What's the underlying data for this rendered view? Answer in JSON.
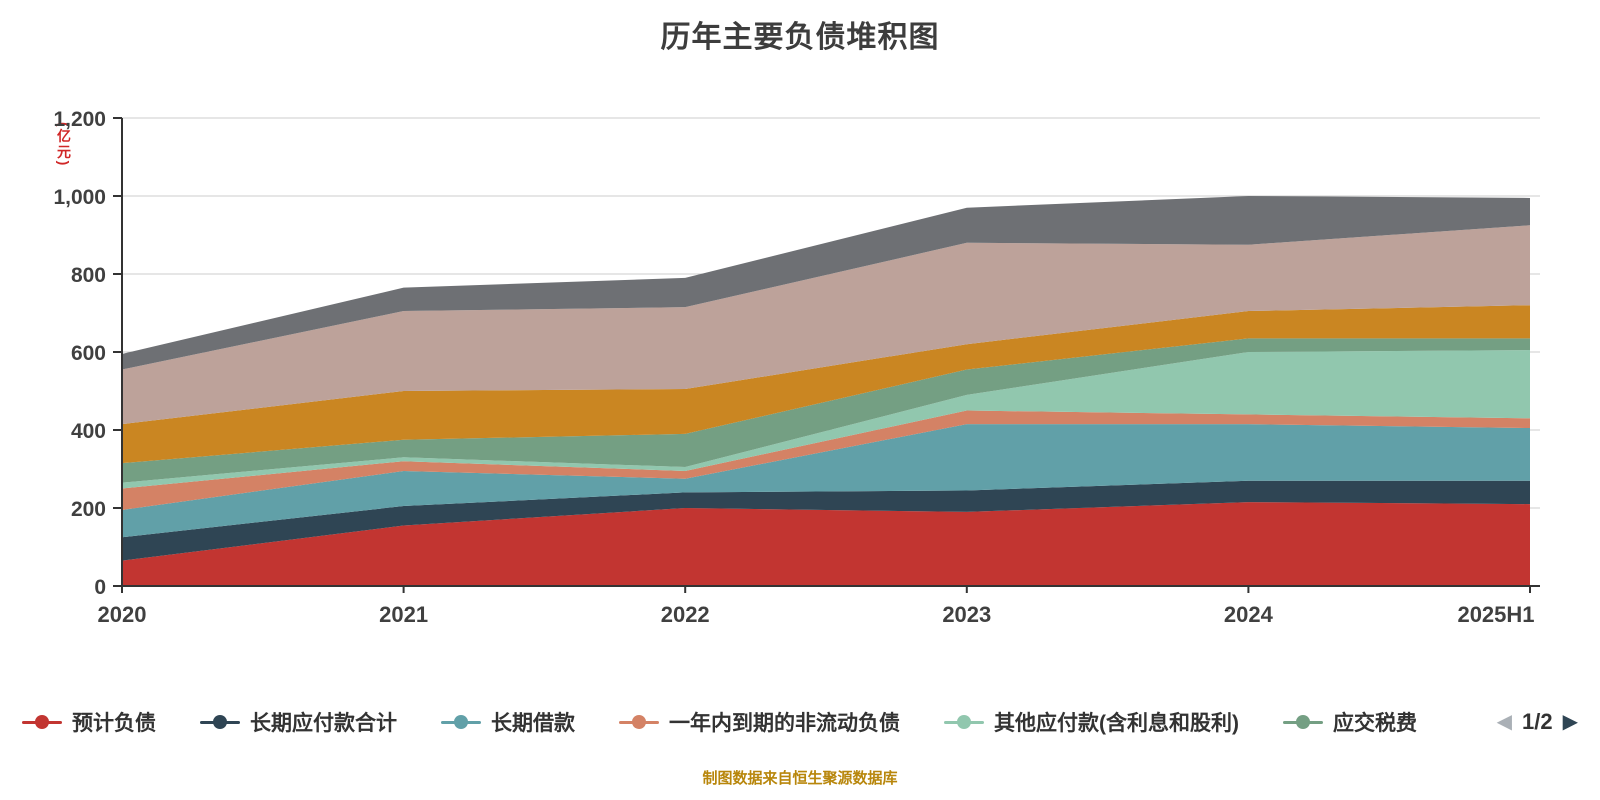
{
  "title": "历年主要负债堆积图",
  "caption": "制图数据来自恒生聚源数据库",
  "y_axis": {
    "name": "(亿元)",
    "tick_labels": [
      "0",
      "200",
      "400",
      "600",
      "800",
      "1,000",
      "1,200"
    ],
    "min": 0,
    "max": 1200
  },
  "x_axis": {
    "categories": [
      "2020",
      "2021",
      "2022",
      "2023",
      "2024",
      "2025H1"
    ]
  },
  "legend": {
    "visible_items": [
      {
        "label": "预计负债",
        "color": "#c23531"
      },
      {
        "label": "长期应付款合计",
        "color": "#2f4554"
      },
      {
        "label": "长期借款",
        "color": "#61a0a8"
      },
      {
        "label": "一年内到期的非流动负债",
        "color": "#d48265"
      },
      {
        "label": "其他应付款(含利息和股利)",
        "color": "#91c7ae"
      },
      {
        "label": "应交税费",
        "color": "#749f83"
      }
    ],
    "page": "1/2",
    "prev_icon": "◀",
    "next_icon": "▶"
  },
  "chart_data": {
    "type": "area",
    "stacked": true,
    "title": "历年主要负债堆积图",
    "ylabel": "(亿元)",
    "ylim": [
      0,
      1200
    ],
    "grid": true,
    "legend_position": "bottom",
    "x": [
      "2020",
      "2021",
      "2022",
      "2023",
      "2024",
      "2025H1"
    ],
    "series": [
      {
        "name": "预计负债",
        "color": "#c23531",
        "legend_page": 1,
        "values": [
          65,
          155,
          200,
          190,
          215,
          210
        ]
      },
      {
        "name": "长期应付款合计",
        "color": "#2f4554",
        "legend_page": 1,
        "values": [
          60,
          50,
          40,
          55,
          55,
          60
        ]
      },
      {
        "name": "长期借款",
        "color": "#61a0a8",
        "legend_page": 1,
        "values": [
          70,
          90,
          35,
          170,
          145,
          135
        ]
      },
      {
        "name": "一年内到期的非流动负债",
        "color": "#d48265",
        "legend_page": 1,
        "values": [
          55,
          25,
          20,
          35,
          25,
          25
        ]
      },
      {
        "name": "其他应付款(含利息和股利)",
        "color": "#91c7ae",
        "legend_page": 1,
        "values": [
          15,
          10,
          10,
          40,
          160,
          175
        ]
      },
      {
        "name": "应交税费",
        "color": "#749f83",
        "legend_page": 1,
        "values": [
          50,
          45,
          85,
          65,
          35,
          30
        ]
      },
      {
        "name": "",
        "color": "#ca8622",
        "legend_page": 2,
        "values": [
          100,
          125,
          115,
          65,
          70,
          85
        ]
      },
      {
        "name": "",
        "color": "#bda29a",
        "legend_page": 2,
        "values": [
          140,
          205,
          210,
          260,
          170,
          205
        ]
      },
      {
        "name": "",
        "color": "#6e7074",
        "legend_page": 2,
        "values": [
          40,
          60,
          75,
          90,
          125,
          70
        ]
      }
    ]
  }
}
